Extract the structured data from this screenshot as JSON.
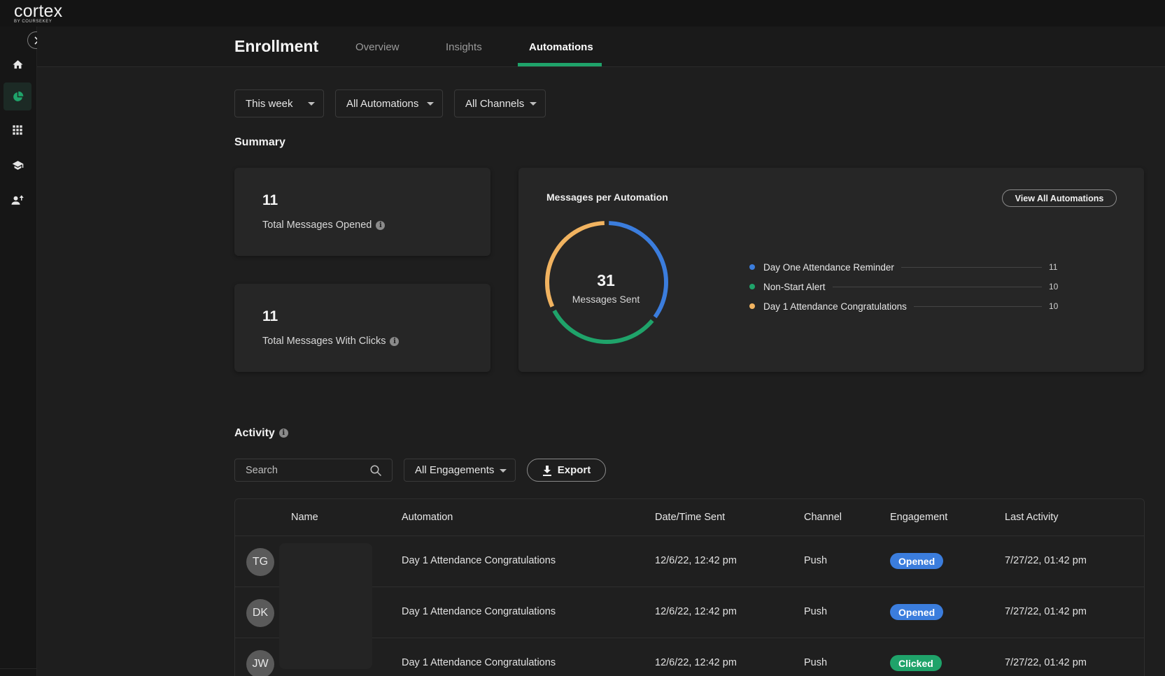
{
  "app": {
    "logo_main": "cortex",
    "logo_sub": "BY COURSEKEY"
  },
  "header": {
    "title": "Enrollment",
    "tabs": [
      {
        "label": "Overview"
      },
      {
        "label": "Insights"
      },
      {
        "label": "Automations"
      }
    ],
    "active_tab": "Automations"
  },
  "filters": {
    "time": "This week",
    "automations": "All Automations",
    "channels": "All Channels"
  },
  "summary": {
    "title": "Summary",
    "stats": [
      {
        "value": "11",
        "label": "Total Messages Opened"
      },
      {
        "value": "11",
        "label": "Total Messages With Clicks"
      }
    ]
  },
  "chart": {
    "title": "Messages per Automation",
    "button": "View All Automations",
    "center_value": "31",
    "center_label": "Messages Sent",
    "legend": [
      {
        "label": "Day One Attendance Reminder",
        "value": "11"
      },
      {
        "label": "Non-Start Alert",
        "value": "10"
      },
      {
        "label": "Day 1 Attendance Congratulations",
        "value": "10"
      }
    ]
  },
  "chart_data": {
    "type": "pie",
    "title": "Messages per Automation",
    "categories": [
      "Day One Attendance Reminder",
      "Non-Start Alert",
      "Day 1 Attendance Congratulations"
    ],
    "values": [
      11,
      10,
      10
    ],
    "colors": [
      "#3b7ddd",
      "#1fa36a",
      "#f1b360"
    ],
    "total": 31
  },
  "activity": {
    "title": "Activity",
    "search_placeholder": "Search",
    "engagement_filter": "All Engagements",
    "export_label": "Export",
    "columns": [
      "Name",
      "Automation",
      "Date/Time Sent",
      "Channel",
      "Engagement",
      "Last Activity"
    ],
    "rows": [
      {
        "initials": "TG",
        "automation": "Day 1 Attendance Congratulations",
        "sent": "12/6/22, 12:42 pm",
        "channel": "Push",
        "engagement": "Opened",
        "engagement_color": "#3b7ddd",
        "last_activity": "7/27/22, 01:42 pm"
      },
      {
        "initials": "DK",
        "automation": "Day 1 Attendance Congratulations",
        "sent": "12/6/22, 12:42 pm",
        "channel": "Push",
        "engagement": "Opened",
        "engagement_color": "#3b7ddd",
        "last_activity": "7/27/22, 01:42 pm"
      },
      {
        "initials": "JW",
        "automation": "Day 1 Attendance Congratulations",
        "sent": "12/6/22, 12:42 pm",
        "channel": "Push",
        "engagement": "Clicked",
        "engagement_color": "#1fa36a",
        "last_activity": "7/27/22, 01:42 pm"
      }
    ]
  },
  "colors": {
    "accent": "#1fa36a",
    "opened": "#3b7ddd",
    "clicked": "#1fa36a"
  }
}
